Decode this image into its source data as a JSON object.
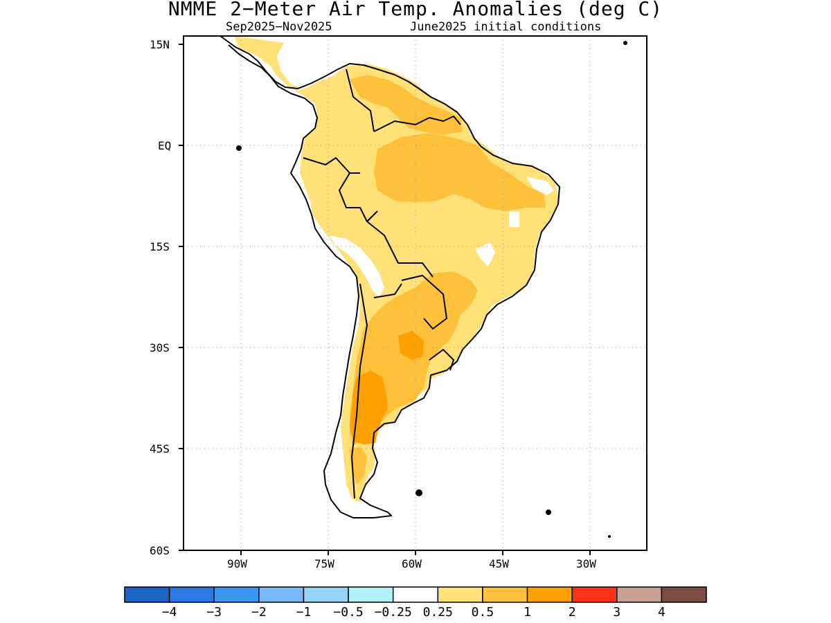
{
  "title": "NMME 2−Meter Air Temp. Anomalies (deg C)",
  "subtitle_period": "Sep2025−Nov2025",
  "subtitle_ic": "June2025 initial conditions",
  "map": {
    "region": "South America",
    "lat_labels": [
      "15N",
      "EQ",
      "15S",
      "30S",
      "45S",
      "60S"
    ],
    "lon_labels": [
      "90W",
      "75W",
      "60W",
      "45W",
      "30W"
    ],
    "lon_range": [
      -100,
      -20
    ],
    "lat_range": [
      -60,
      15
    ],
    "grid": "dotted"
  },
  "colorbar": {
    "labels": [
      "−4",
      "−3",
      "−2",
      "−1",
      "−0.5",
      "−0.25",
      "0.25",
      "0.5",
      "1",
      "2",
      "3",
      "4"
    ],
    "colors": [
      "#1c64c8",
      "#2a78e6",
      "#3c96f0",
      "#78b9fa",
      "#96d2fa",
      "#b4f0fa",
      "#ffffff",
      "#ffe178",
      "#ffc03c",
      "#ffa000",
      "#ff3218",
      "#c8a096",
      "#7a4e44"
    ]
  },
  "anomaly_regions": [
    {
      "level": "0.25-0.5",
      "color": "#ffe178",
      "area": "most of continent"
    },
    {
      "level": "0.5-1",
      "color": "#ffc03c",
      "area": "Venezuela/Guianas, Amazon basin, northern Argentina, Paraguay, southern Brazil"
    },
    {
      "level": "1-2",
      "color": "#ffa000",
      "area": "central Argentina / Patagonia"
    },
    {
      "level": "-0.25-0.25",
      "color": "#ffffff",
      "area": "NE Brazil coast, Peru/Chile coast, tip of Patagonia"
    }
  ]
}
